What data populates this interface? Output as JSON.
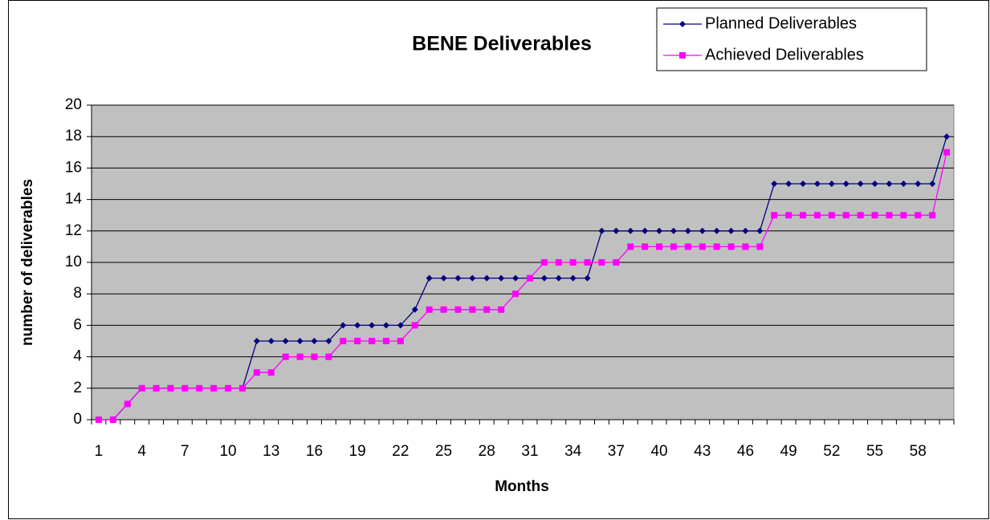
{
  "chart_data": {
    "type": "line",
    "title": "BENE Deliverables",
    "x_label": "Months",
    "y_label": "number of deliverables",
    "categories": [
      1,
      null,
      null,
      4,
      null,
      null,
      7,
      null,
      null,
      10,
      null,
      null,
      13,
      null,
      null,
      16,
      null,
      null,
      19,
      null,
      null,
      22,
      null,
      null,
      25,
      null,
      null,
      28,
      null,
      null,
      31,
      null,
      null,
      34,
      null,
      null,
      37,
      null,
      null,
      40,
      null,
      null,
      43,
      null,
      null,
      46,
      null,
      null,
      49,
      null,
      null,
      52,
      null,
      null,
      55,
      null,
      null,
      58,
      null,
      null
    ],
    "series": [
      {
        "name": "Planned Deliverables",
        "color": "#000080",
        "marker": "diamond",
        "values": [
          0,
          0,
          1,
          2,
          2,
          2,
          2,
          2,
          2,
          2,
          2,
          5,
          5,
          5,
          5,
          5,
          5,
          6,
          6,
          6,
          6,
          6,
          7,
          9,
          9,
          9,
          9,
          9,
          9,
          9,
          9,
          9,
          9,
          9,
          9,
          12,
          12,
          12,
          12,
          12,
          12,
          12,
          12,
          12,
          12,
          12,
          12,
          15,
          15,
          15,
          15,
          15,
          15,
          15,
          15,
          15,
          15,
          15,
          15,
          18
        ]
      },
      {
        "name": "Achieved Deliverables",
        "color": "#ff00ff",
        "marker": "square",
        "values": [
          0,
          0,
          1,
          2,
          2,
          2,
          2,
          2,
          2,
          2,
          2,
          3,
          3,
          4,
          4,
          4,
          4,
          5,
          5,
          5,
          5,
          5,
          6,
          7,
          7,
          7,
          7,
          7,
          7,
          8,
          9,
          10,
          10,
          10,
          10,
          10,
          10,
          11,
          11,
          11,
          11,
          11,
          11,
          11,
          11,
          11,
          11,
          13,
          13,
          13,
          13,
          13,
          13,
          13,
          13,
          13,
          13,
          13,
          13,
          17
        ]
      }
    ],
    "ylim": [
      0,
      20
    ],
    "yticks": [
      0,
      2,
      4,
      6,
      8,
      10,
      12,
      14,
      16,
      18,
      20
    ],
    "grid": true,
    "legend": "upper right",
    "plot_background": "#c0c0c0"
  }
}
